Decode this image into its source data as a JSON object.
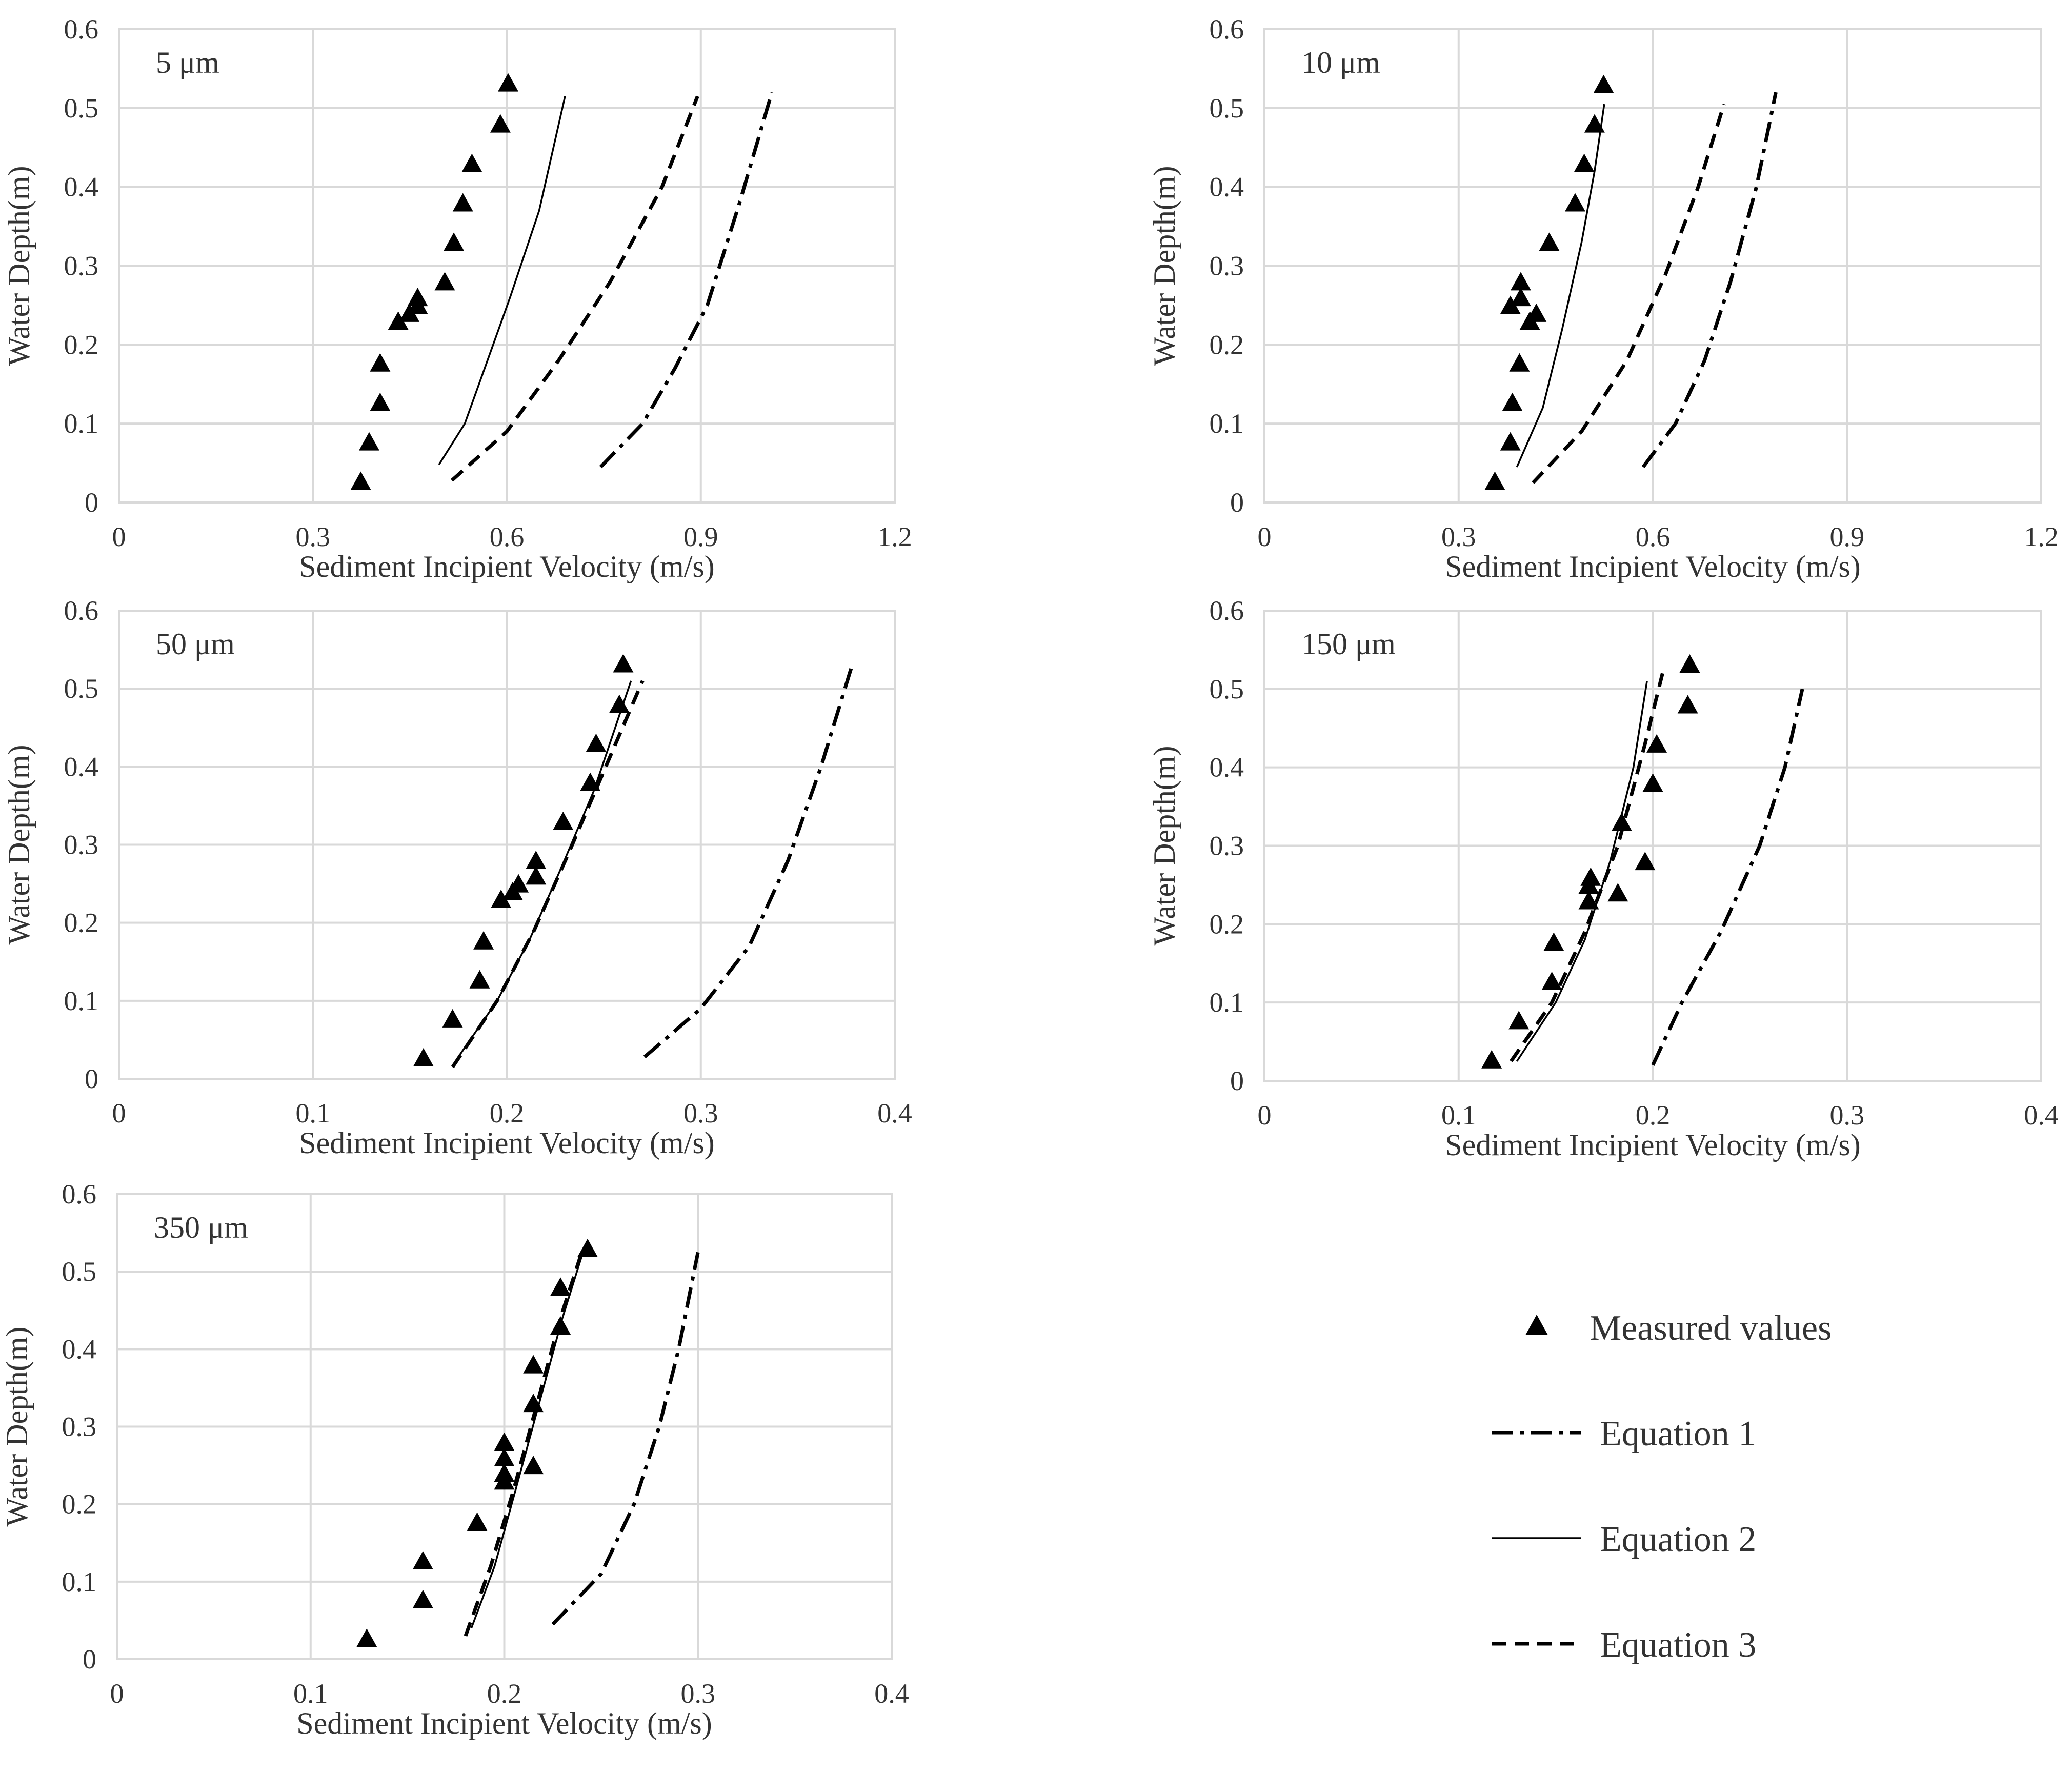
{
  "figure": {
    "legend": {
      "placement": "bottom-right",
      "items": [
        {
          "key": "measured",
          "label": "Measured values",
          "marker": "triangle-filled"
        },
        {
          "key": "eq1",
          "label": "Equation 1",
          "style": "dash-dot"
        },
        {
          "key": "eq2",
          "label": "Equation 2",
          "style": "solid-thin"
        },
        {
          "key": "eq3",
          "label": "Equation 3",
          "style": "dashed"
        }
      ]
    }
  },
  "chart_data": [
    {
      "type": "scatter+line",
      "title": "5 μm",
      "xlabel": "Sediment Incipient Velocity (m/s)",
      "ylabel": "Water Depth(m)",
      "xlim": [
        0,
        1.2
      ],
      "ylim": [
        0,
        0.6
      ],
      "xticks": [
        0,
        0.3,
        0.6,
        0.9,
        1.2
      ],
      "xtick_labels": [
        "0",
        "0.3",
        "0.6",
        "0.9",
        "1.2"
      ],
      "yticks": [
        0,
        0.1,
        0.2,
        0.3,
        0.4,
        0.5,
        0.6
      ],
      "ytick_labels": [
        "0",
        "0.1",
        "0.2",
        "0.3",
        "0.4",
        "0.5",
        "0.6"
      ],
      "grid": true,
      "measured": [
        [
          0.374,
          0.025
        ],
        [
          0.387,
          0.075
        ],
        [
          0.404,
          0.125
        ],
        [
          0.404,
          0.175
        ],
        [
          0.432,
          0.228
        ],
        [
          0.449,
          0.238
        ],
        [
          0.462,
          0.248
        ],
        [
          0.462,
          0.258
        ],
        [
          0.504,
          0.278
        ],
        [
          0.518,
          0.328
        ],
        [
          0.532,
          0.378
        ],
        [
          0.546,
          0.428
        ],
        [
          0.59,
          0.478
        ],
        [
          0.602,
          0.53
        ]
      ],
      "equations": {
        "eq1": [
          [
            0.745,
            0.045
          ],
          [
            0.81,
            0.1
          ],
          [
            0.86,
            0.17
          ],
          [
            0.91,
            0.25
          ],
          [
            0.96,
            0.38
          ],
          [
            1.01,
            0.52
          ]
        ],
        "eq2": [
          [
            0.495,
            0.048
          ],
          [
            0.535,
            0.1
          ],
          [
            0.57,
            0.18
          ],
          [
            0.605,
            0.26
          ],
          [
            0.65,
            0.37
          ],
          [
            0.69,
            0.515
          ]
        ],
        "eq3": [
          [
            0.515,
            0.028
          ],
          [
            0.6,
            0.09
          ],
          [
            0.68,
            0.18
          ],
          [
            0.76,
            0.28
          ],
          [
            0.84,
            0.4
          ],
          [
            0.895,
            0.515
          ]
        ]
      }
    },
    {
      "type": "scatter+line",
      "title": "10 μm",
      "xlabel": "Sediment Incipient Velocity (m/s)",
      "ylabel": "Water Depth(m)",
      "xlim": [
        0,
        1.2
      ],
      "ylim": [
        0,
        0.6
      ],
      "xticks": [
        0,
        0.3,
        0.6,
        0.9,
        1.2
      ],
      "xtick_labels": [
        "0",
        "0.3",
        "0.6",
        "0.9",
        "1.2"
      ],
      "yticks": [
        0,
        0.1,
        0.2,
        0.3,
        0.4,
        0.5,
        0.6
      ],
      "ytick_labels": [
        "0",
        "0.1",
        "0.2",
        "0.3",
        "0.4",
        "0.5",
        "0.6"
      ],
      "grid": true,
      "measured": [
        [
          0.356,
          0.025
        ],
        [
          0.38,
          0.075
        ],
        [
          0.383,
          0.125
        ],
        [
          0.394,
          0.175
        ],
        [
          0.41,
          0.228
        ],
        [
          0.42,
          0.238
        ],
        [
          0.38,
          0.248
        ],
        [
          0.396,
          0.258
        ],
        [
          0.396,
          0.278
        ],
        [
          0.44,
          0.328
        ],
        [
          0.48,
          0.378
        ],
        [
          0.494,
          0.428
        ],
        [
          0.51,
          0.478
        ],
        [
          0.524,
          0.528
        ]
      ],
      "equations": {
        "eq1": [
          [
            0.585,
            0.045
          ],
          [
            0.635,
            0.1
          ],
          [
            0.68,
            0.18
          ],
          [
            0.72,
            0.28
          ],
          [
            0.76,
            0.4
          ],
          [
            0.79,
            0.52
          ]
        ],
        "eq2": [
          [
            0.39,
            0.045
          ],
          [
            0.43,
            0.12
          ],
          [
            0.46,
            0.22
          ],
          [
            0.49,
            0.33
          ],
          [
            0.51,
            0.42
          ],
          [
            0.525,
            0.505
          ]
        ],
        "eq3": [
          [
            0.415,
            0.025
          ],
          [
            0.49,
            0.09
          ],
          [
            0.56,
            0.18
          ],
          [
            0.62,
            0.29
          ],
          [
            0.67,
            0.4
          ],
          [
            0.71,
            0.505
          ]
        ]
      }
    },
    {
      "type": "scatter+line",
      "title": "50 μm",
      "xlabel": "Sediment Incipient Velocity (m/s)",
      "ylabel": "Water Depth(m)",
      "xlim": [
        0,
        0.4
      ],
      "ylim": [
        0,
        0.6
      ],
      "xticks": [
        0,
        0.1,
        0.2,
        0.3,
        0.4
      ],
      "xtick_labels": [
        "0",
        "0.1",
        "0.2",
        "0.3",
        "0.4"
      ],
      "yticks": [
        0,
        0.1,
        0.2,
        0.3,
        0.4,
        0.5,
        0.6
      ],
      "ytick_labels": [
        "0",
        "0.1",
        "0.2",
        "0.3",
        "0.4",
        "0.5",
        "0.6"
      ],
      "grid": true,
      "measured": [
        [
          0.157,
          0.025
        ],
        [
          0.172,
          0.075
        ],
        [
          0.186,
          0.125
        ],
        [
          0.188,
          0.175
        ],
        [
          0.197,
          0.228
        ],
        [
          0.203,
          0.238
        ],
        [
          0.206,
          0.248
        ],
        [
          0.215,
          0.258
        ],
        [
          0.215,
          0.278
        ],
        [
          0.229,
          0.328
        ],
        [
          0.243,
          0.378
        ],
        [
          0.246,
          0.428
        ],
        [
          0.258,
          0.478
        ],
        [
          0.26,
          0.53
        ]
      ],
      "equations": {
        "eq1": [
          [
            0.271,
            0.028
          ],
          [
            0.3,
            0.09
          ],
          [
            0.325,
            0.17
          ],
          [
            0.345,
            0.28
          ],
          [
            0.362,
            0.4
          ],
          [
            0.378,
            0.53
          ]
        ],
        "eq2": [
          [
            0.175,
            0.028
          ],
          [
            0.195,
            0.1
          ],
          [
            0.212,
            0.18
          ],
          [
            0.228,
            0.27
          ],
          [
            0.245,
            0.37
          ],
          [
            0.264,
            0.51
          ]
        ],
        "eq3": [
          [
            0.172,
            0.015
          ],
          [
            0.195,
            0.1
          ],
          [
            0.214,
            0.19
          ],
          [
            0.232,
            0.29
          ],
          [
            0.251,
            0.4
          ],
          [
            0.27,
            0.51
          ]
        ]
      }
    },
    {
      "type": "scatter+line",
      "title": "150 μm",
      "xlabel": "Sediment Incipient Velocity (m/s)",
      "ylabel": "Water Depth(m)",
      "xlim": [
        0,
        0.4
      ],
      "ylim": [
        0,
        0.6
      ],
      "xticks": [
        0,
        0.1,
        0.2,
        0.3,
        0.4
      ],
      "xtick_labels": [
        "0",
        "0.1",
        "0.2",
        "0.3",
        "0.4"
      ],
      "yticks": [
        0,
        0.1,
        0.2,
        0.3,
        0.4,
        0.5,
        0.6
      ],
      "ytick_labels": [
        "0",
        "0.1",
        "0.2",
        "0.3",
        "0.4",
        "0.5",
        "0.6"
      ],
      "grid": true,
      "measured": [
        [
          0.117,
          0.025
        ],
        [
          0.131,
          0.075
        ],
        [
          0.148,
          0.125
        ],
        [
          0.149,
          0.175
        ],
        [
          0.167,
          0.228
        ],
        [
          0.182,
          0.238
        ],
        [
          0.167,
          0.248
        ],
        [
          0.168,
          0.258
        ],
        [
          0.196,
          0.278
        ],
        [
          0.184,
          0.328
        ],
        [
          0.2,
          0.378
        ],
        [
          0.202,
          0.428
        ],
        [
          0.218,
          0.478
        ],
        [
          0.219,
          0.53
        ]
      ],
      "equations": {
        "eq1": [
          [
            0.2,
            0.02
          ],
          [
            0.215,
            0.1
          ],
          [
            0.235,
            0.19
          ],
          [
            0.255,
            0.3
          ],
          [
            0.268,
            0.4
          ],
          [
            0.277,
            0.5
          ]
        ],
        "eq2": [
          [
            0.13,
            0.025
          ],
          [
            0.15,
            0.1
          ],
          [
            0.165,
            0.18
          ],
          [
            0.178,
            0.28
          ],
          [
            0.19,
            0.4
          ],
          [
            0.197,
            0.51
          ]
        ],
        "eq3": [
          [
            0.127,
            0.025
          ],
          [
            0.148,
            0.1
          ],
          [
            0.165,
            0.19
          ],
          [
            0.182,
            0.3
          ],
          [
            0.196,
            0.43
          ],
          [
            0.205,
            0.52
          ]
        ]
      }
    },
    {
      "type": "scatter+line",
      "title": "350 μm",
      "xlabel": "Sediment Incipient Velocity (m/s)",
      "ylabel": "Water Depth(m)",
      "xlim": [
        0,
        0.4
      ],
      "ylim": [
        0,
        0.6
      ],
      "xticks": [
        0,
        0.1,
        0.2,
        0.3,
        0.4
      ],
      "xtick_labels": [
        "0",
        "0.1",
        "0.2",
        "0.3",
        "0.4"
      ],
      "yticks": [
        0,
        0.1,
        0.2,
        0.3,
        0.4,
        0.5,
        0.6
      ],
      "ytick_labels": [
        "0",
        "0.1",
        "0.2",
        "0.3",
        "0.4",
        "0.5",
        "0.6"
      ],
      "grid": true,
      "measured": [
        [
          0.129,
          0.025
        ],
        [
          0.158,
          0.075
        ],
        [
          0.158,
          0.125
        ],
        [
          0.186,
          0.175
        ],
        [
          0.2,
          0.228
        ],
        [
          0.2,
          0.238
        ],
        [
          0.2,
          0.258
        ],
        [
          0.215,
          0.248
        ],
        [
          0.2,
          0.278
        ],
        [
          0.215,
          0.328
        ],
        [
          0.215,
          0.378
        ],
        [
          0.229,
          0.428
        ],
        [
          0.229,
          0.478
        ],
        [
          0.243,
          0.528
        ]
      ],
      "equations": {
        "eq1": [
          [
            0.225,
            0.045
          ],
          [
            0.25,
            0.11
          ],
          [
            0.267,
            0.2
          ],
          [
            0.28,
            0.3
          ],
          [
            0.29,
            0.4
          ],
          [
            0.3,
            0.525
          ]
        ],
        "eq2": [
          [
            0.183,
            0.04
          ],
          [
            0.195,
            0.12
          ],
          [
            0.206,
            0.22
          ],
          [
            0.218,
            0.33
          ],
          [
            0.23,
            0.44
          ],
          [
            0.24,
            0.52
          ]
        ],
        "eq3": [
          [
            0.18,
            0.03
          ],
          [
            0.193,
            0.12
          ],
          [
            0.205,
            0.22
          ],
          [
            0.217,
            0.33
          ],
          [
            0.229,
            0.44
          ],
          [
            0.24,
            0.525
          ]
        ]
      }
    }
  ]
}
